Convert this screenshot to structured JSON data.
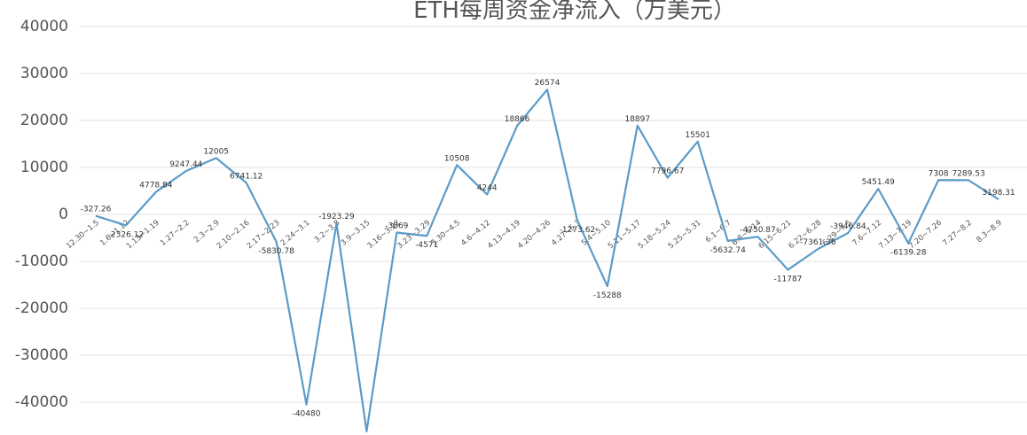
{
  "chart_data": {
    "type": "line",
    "title": "ETH每周资金净流入（万美元）",
    "categories": [
      "12.30~1.5",
      "1.6~1.12",
      "1.13~1.19",
      "1.27~2.2",
      "2.3~2.9",
      "2.10~2.16",
      "2.17~2.23",
      "2.24~3.1",
      "3.2~3.8",
      "3.9~3.15",
      "3.16~3.22",
      "3.23~3.29",
      "3.30~4.5",
      "4.6~4.12",
      "4.13~4.19",
      "4.20~4.26",
      "4.27~5.3",
      "5.4~5.10",
      "5.11~5.17",
      "5.18~5.24",
      "5.25~5.31",
      "6.1~6.7",
      "6.8~6.14",
      "6.15~6.21",
      "6.22~6.28",
      "6.29~7.5",
      "7.6~7.12",
      "7.13~7.19",
      "7.20~7.26",
      "7.27~8.2",
      "8.3~8.9"
    ],
    "values": [
      -327.26,
      -2326.12,
      4778.84,
      9247.44,
      12005,
      6741.12,
      -5830.78,
      -40480,
      -1923.29,
      -46200,
      -3869,
      -4571,
      10508,
      4244,
      18866,
      26574,
      -1273.62,
      -15288,
      18897,
      7796.67,
      15501,
      -5632.74,
      -4750.87,
      -11787,
      -7361.36,
      -3946.84,
      5451.49,
      -6139.28,
      7308,
      7289.53,
      3198.31
    ],
    "color": "#5b9bc8",
    "ylim": [
      -50000,
      40000
    ],
    "yticks": [
      -40000,
      -30000,
      -20000,
      -10000,
      0,
      10000,
      20000,
      30000,
      40000
    ],
    "grid": true
  }
}
